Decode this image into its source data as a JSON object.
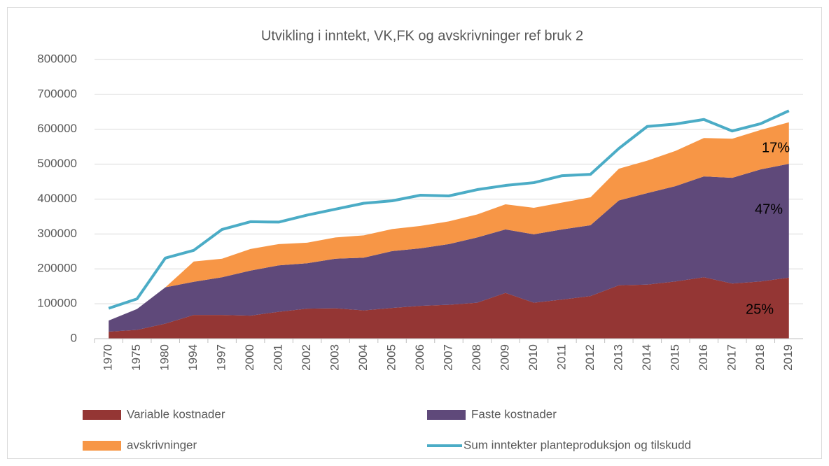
{
  "chart_data": {
    "type": "stacked-area-line",
    "title": "Utvikling i inntekt, VK,FK og avskrivninger ref bruk 2",
    "categories": [
      "1970",
      "1975",
      "1980",
      "1994",
      "1997",
      "2000",
      "2001",
      "2002",
      "2003",
      "2004",
      "2005",
      "2006",
      "2007",
      "2008",
      "2009",
      "2010",
      "2011",
      "2012",
      "2013",
      "2014",
      "2015",
      "2016",
      "2017",
      "2018",
      "2019"
    ],
    "series": [
      {
        "name": "Variable kostnader",
        "color": "#943634",
        "kind": "area",
        "values": [
          20000,
          25000,
          43000,
          68000,
          68000,
          66000,
          77000,
          86000,
          87000,
          81000,
          88000,
          94000,
          97000,
          103000,
          131000,
          103000,
          112000,
          122000,
          153000,
          155000,
          164000,
          176000,
          158000,
          164000,
          175000
        ]
      },
      {
        "name": "Faste kostnader",
        "color": "#5f497a",
        "kind": "area",
        "values": [
          32000,
          60000,
          104000,
          95000,
          108000,
          129000,
          133000,
          130000,
          142000,
          151000,
          163000,
          165000,
          174000,
          187000,
          182000,
          196000,
          201000,
          203000,
          243000,
          262000,
          273000,
          289000,
          303000,
          321000,
          326000
        ]
      },
      {
        "name": "avskrivninger",
        "color": "#f79646",
        "kind": "area",
        "values": [
          0,
          0,
          0,
          58000,
          53000,
          62000,
          61000,
          59000,
          61000,
          64000,
          63000,
          64000,
          65000,
          66000,
          72000,
          76000,
          77000,
          80000,
          91000,
          93000,
          101000,
          110000,
          112000,
          113000,
          119000
        ]
      },
      {
        "name": "Sum inntekter planteproduksjon og tilskudd",
        "color": "#4bacc6",
        "kind": "line",
        "values": [
          87000,
          114000,
          231000,
          253000,
          313000,
          335000,
          334000,
          354000,
          371000,
          388000,
          395000,
          411000,
          409000,
          427000,
          439000,
          447000,
          467000,
          471000,
          545000,
          608000,
          615000,
          628000,
          595000,
          616000,
          653000
        ]
      }
    ],
    "annotations": [
      "25%",
      "47%",
      "17%"
    ],
    "ylim": [
      0,
      800000
    ],
    "yticks": [
      0,
      100000,
      200000,
      300000,
      400000,
      500000,
      600000,
      700000,
      800000
    ],
    "grid": true
  }
}
